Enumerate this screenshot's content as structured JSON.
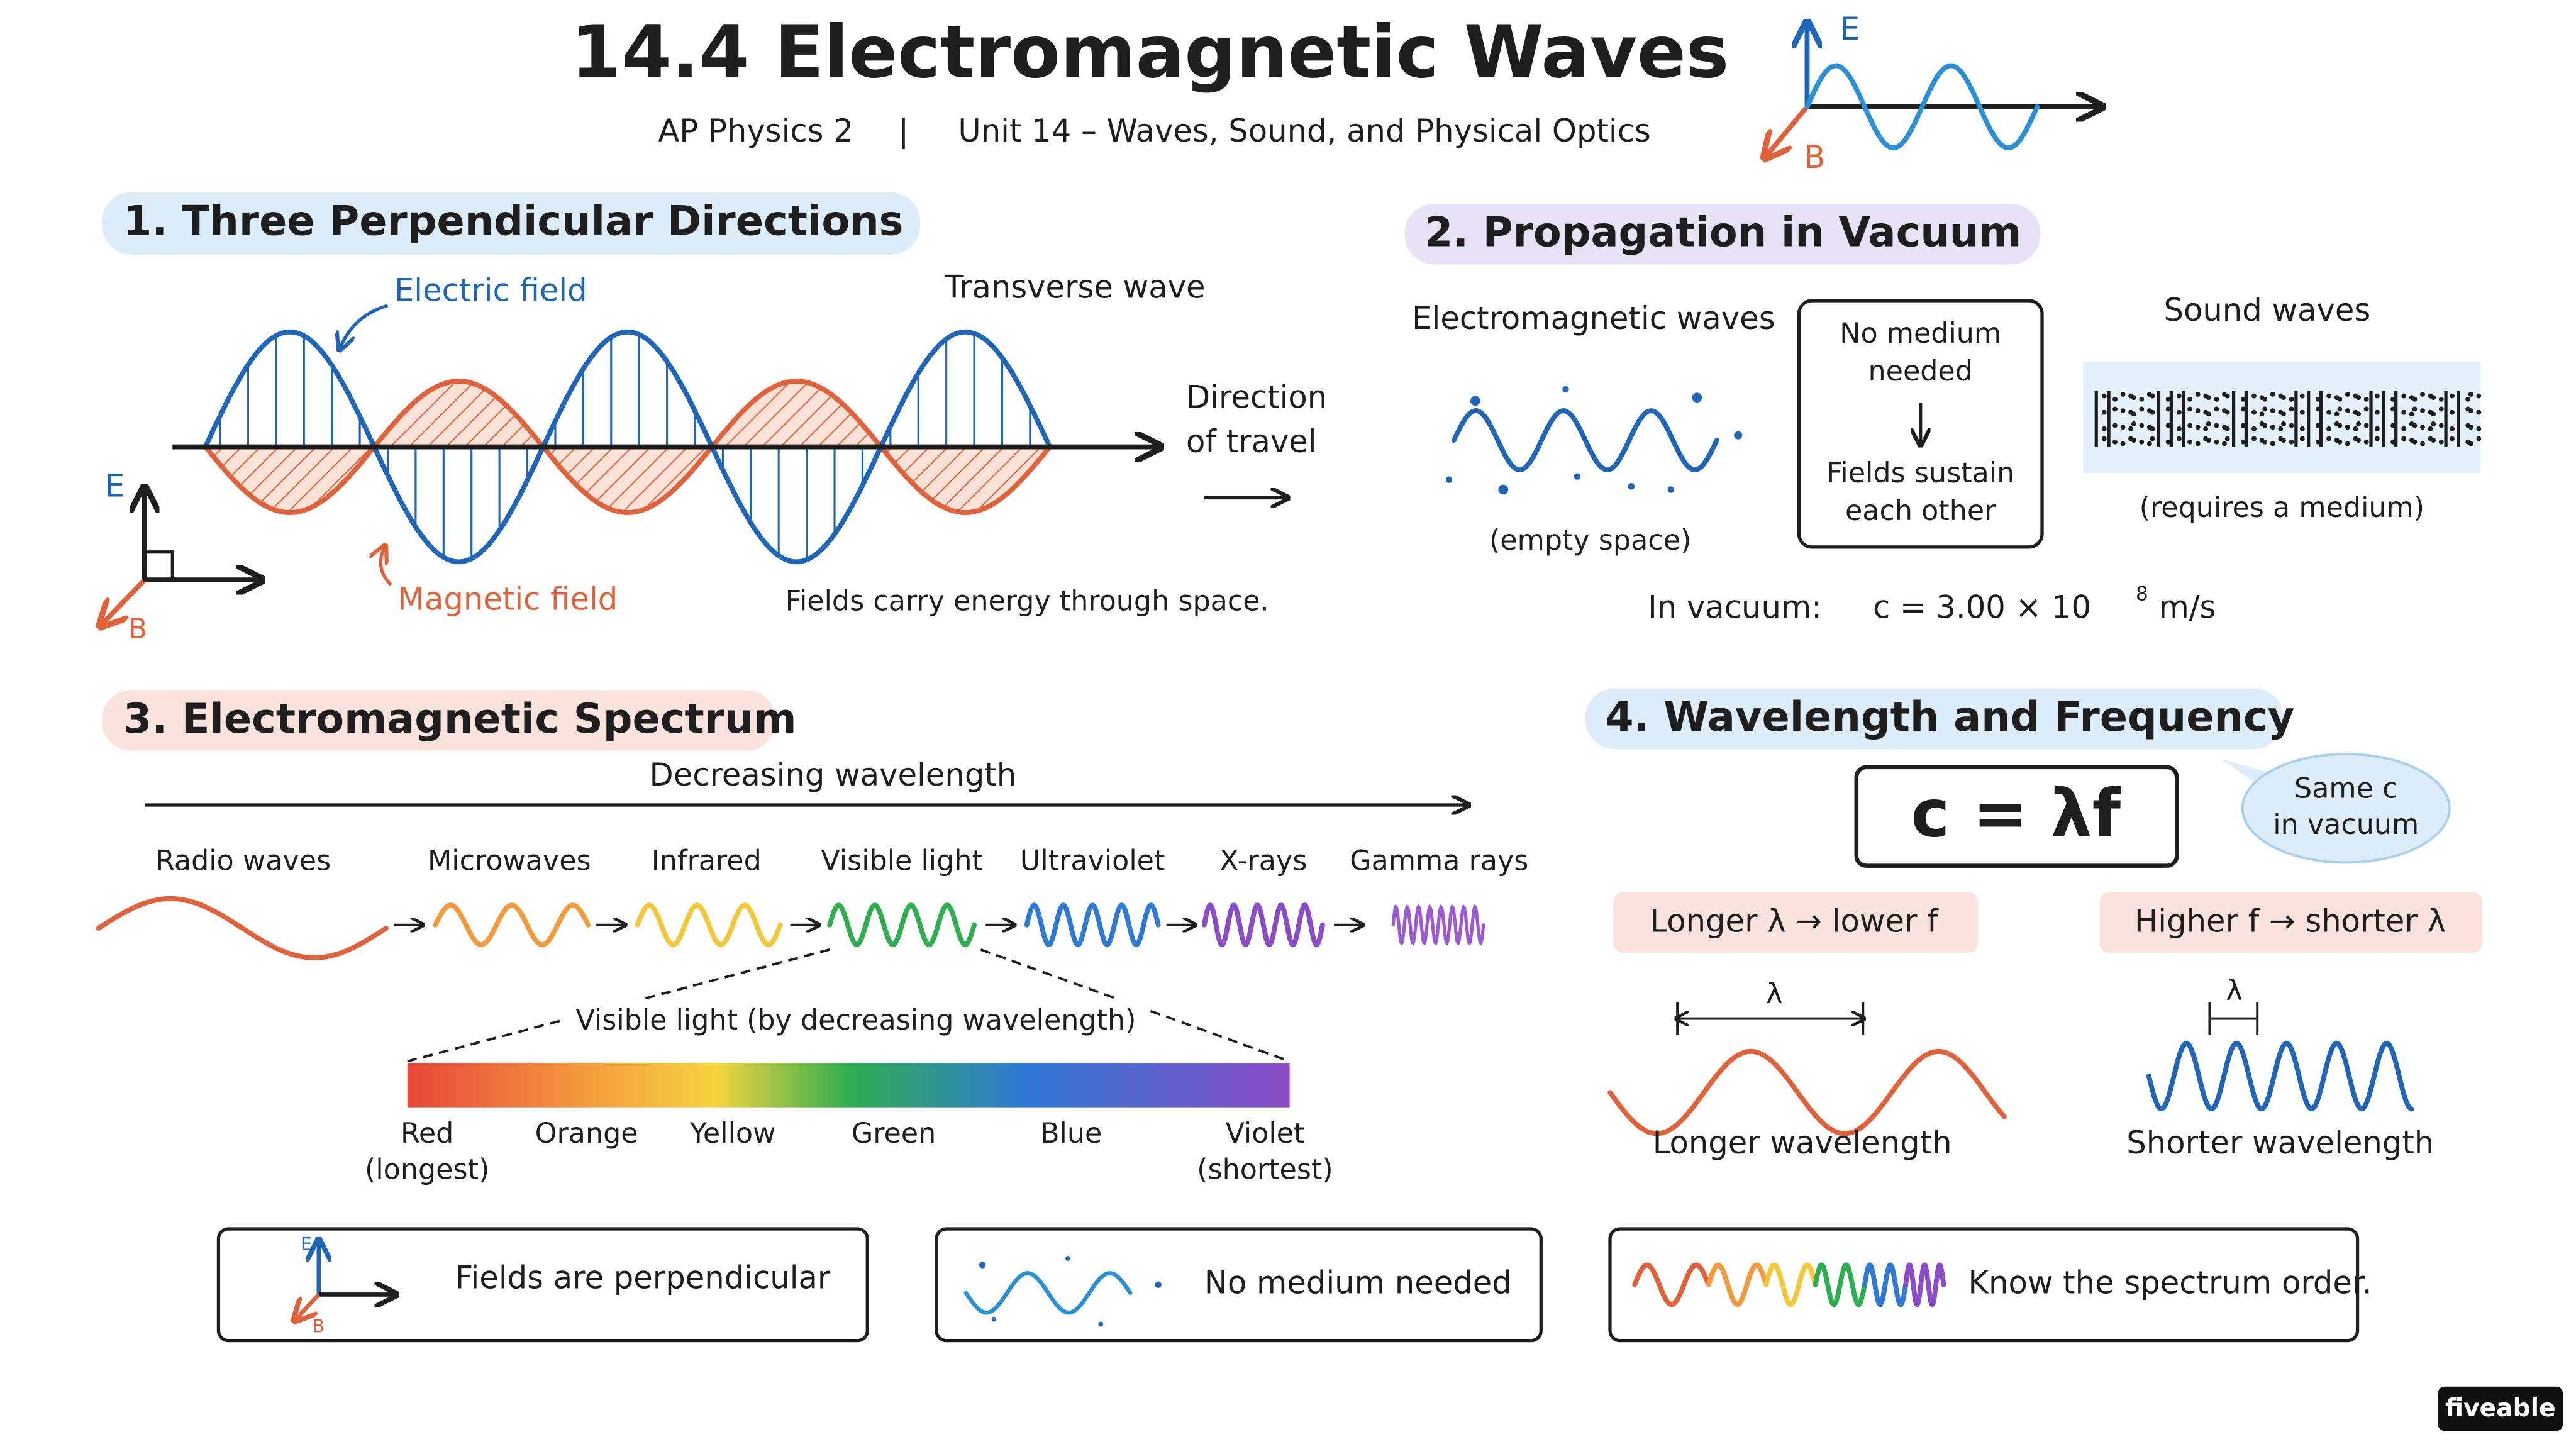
{
  "header": {
    "title": "14.4 Electromagnetic Waves",
    "course": "AP Physics 2",
    "separator": "|",
    "unit": "Unit 14 – Waves, Sound, and Physical Optics",
    "icon_e": "E",
    "icon_b": "B"
  },
  "section1": {
    "heading": "1. Three Perpendicular Directions",
    "electric_label": "Electric field",
    "transverse_label": "Transverse wave",
    "direction_label": [
      "Direction",
      "of travel"
    ],
    "magnetic_label": "Magnetic field",
    "axis_e": "E",
    "axis_b": "B",
    "caption": "Fields carry energy through space."
  },
  "section2": {
    "heading": "2. Propagation in Vacuum",
    "em_label": "Electromagnetic waves",
    "em_caption": "(empty space)",
    "box_lines": [
      "No medium",
      "needed",
      "Fields sustain",
      "each other"
    ],
    "sound_label": "Sound waves",
    "sound_caption": "(requires a medium)",
    "vacuum_label": "In vacuum:",
    "speed_base": "c = 3.00 × 10",
    "speed_exponent": "8",
    "speed_unit": "m/s"
  },
  "section3": {
    "heading": "3. Electromagnetic Spectrum",
    "arrow_label": "Decreasing wavelength",
    "bands": [
      "Radio waves",
      "Microwaves",
      "Infrared",
      "Visible light",
      "Ultraviolet",
      "X-rays",
      "Gamma rays"
    ],
    "visible_label": "Visible light (by decreasing wavelength)",
    "colors": [
      "Red",
      "Orange",
      "Yellow",
      "Green",
      "Blue",
      "Violet"
    ],
    "red_note": "(longest)",
    "violet_note": "(shortest)"
  },
  "section4": {
    "heading": "4. Wavelength and Frequency",
    "formula": "c = λf",
    "bubble": [
      "Same c",
      "in vacuum"
    ],
    "rule_left": "Longer λ → lower f",
    "rule_right": "Higher f → shorter λ",
    "lambda": "λ",
    "left_caption": "Longer wavelength",
    "right_caption": "Shorter wavelength"
  },
  "summary": {
    "axis_e": "E",
    "axis_b": "B",
    "items": [
      "Fields are perpendicular",
      "No medium needed",
      "Know the spectrum order."
    ]
  },
  "brand": "fiveable"
}
